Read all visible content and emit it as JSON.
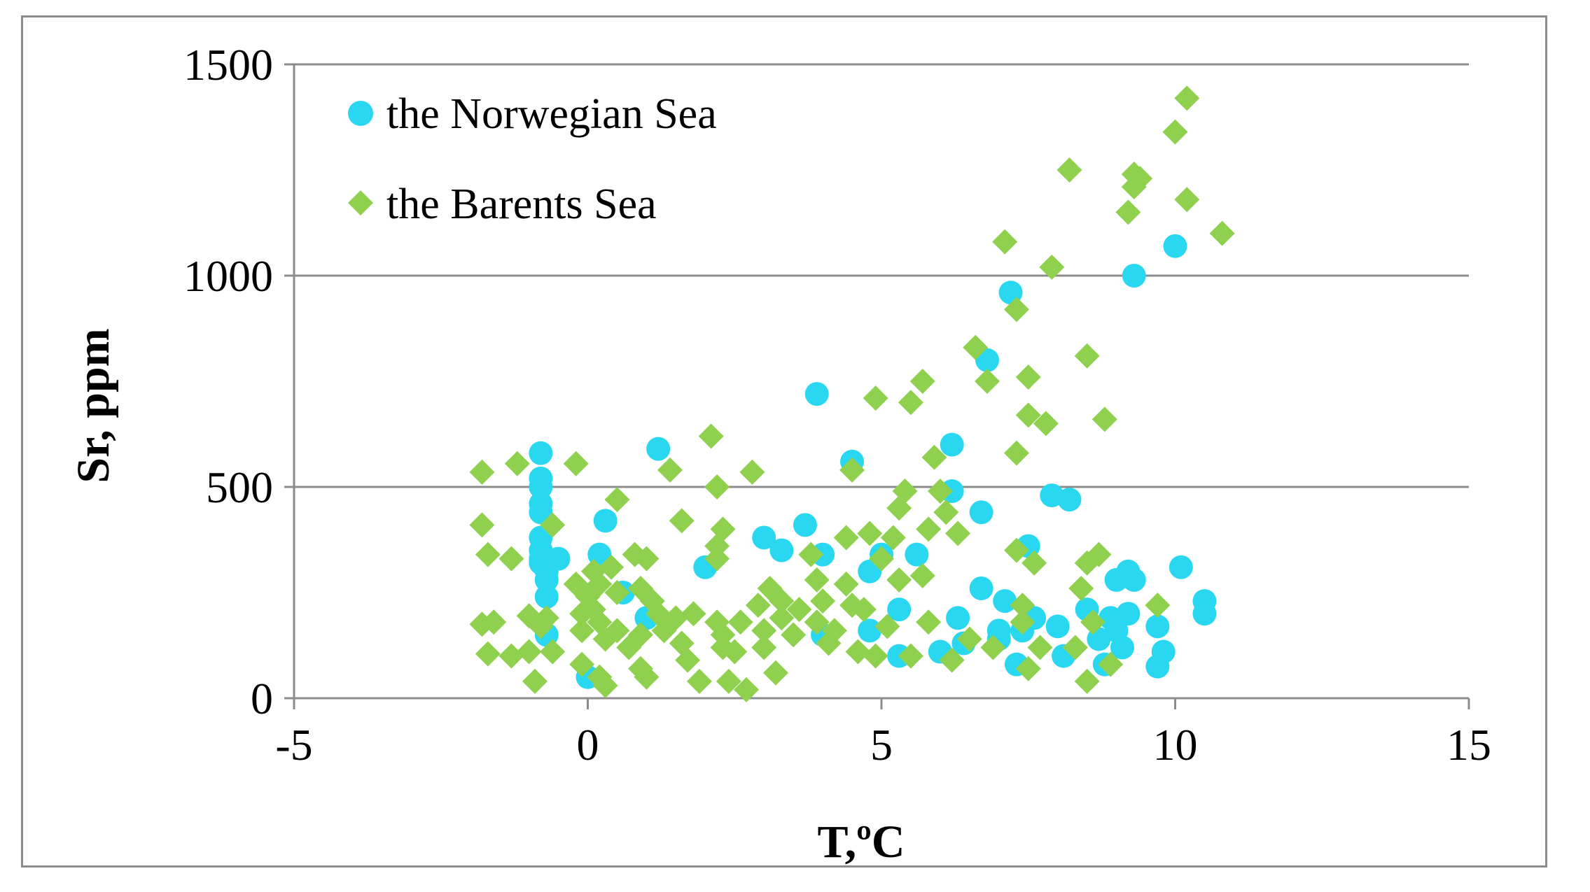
{
  "chart_data": {
    "type": "scatter",
    "title": "",
    "xlabel": "T,ºC",
    "ylabel": "Sr, ppm",
    "xlim": [
      -5,
      15
    ],
    "ylim": [
      0,
      1500
    ],
    "xticks": [
      -5,
      0,
      5,
      10,
      15
    ],
    "yticks": [
      0,
      500,
      1000,
      1500
    ],
    "grid": "horizontal",
    "legend_position": "top-left",
    "series": [
      {
        "name": "the Norwegian Sea",
        "marker": "circle",
        "color": "#29d8f0",
        "points": [
          [
            -0.8,
            580
          ],
          [
            -0.8,
            520
          ],
          [
            -0.8,
            500
          ],
          [
            -0.8,
            460
          ],
          [
            -0.8,
            440
          ],
          [
            -0.8,
            380
          ],
          [
            -0.8,
            350
          ],
          [
            -0.8,
            330
          ],
          [
            -0.8,
            320
          ],
          [
            -0.7,
            300
          ],
          [
            -0.7,
            280
          ],
          [
            -0.7,
            240
          ],
          [
            -0.5,
            330
          ],
          [
            -0.7,
            150
          ],
          [
            0,
            50
          ],
          [
            0.2,
            340
          ],
          [
            0.3,
            420
          ],
          [
            0.6,
            250
          ],
          [
            1.0,
            190
          ],
          [
            1.2,
            590
          ],
          [
            2.0,
            310
          ],
          [
            3.0,
            380
          ],
          [
            3.3,
            350
          ],
          [
            3.7,
            410
          ],
          [
            3.9,
            720
          ],
          [
            4.0,
            340
          ],
          [
            4.0,
            150
          ],
          [
            4.5,
            560
          ],
          [
            4.8,
            300
          ],
          [
            4.8,
            160
          ],
          [
            5.0,
            340
          ],
          [
            5.3,
            210
          ],
          [
            5.3,
            100
          ],
          [
            5.6,
            340
          ],
          [
            6.0,
            110
          ],
          [
            6.2,
            490
          ],
          [
            6.2,
            600
          ],
          [
            6.3,
            190
          ],
          [
            6.4,
            130
          ],
          [
            6.7,
            260
          ],
          [
            6.7,
            440
          ],
          [
            6.8,
            800
          ],
          [
            7.0,
            160
          ],
          [
            7.0,
            140
          ],
          [
            7.1,
            230
          ],
          [
            7.2,
            960
          ],
          [
            7.3,
            80
          ],
          [
            7.4,
            160
          ],
          [
            7.5,
            360
          ],
          [
            7.6,
            190
          ],
          [
            7.9,
            480
          ],
          [
            8.0,
            170
          ],
          [
            8.1,
            100
          ],
          [
            8.2,
            470
          ],
          [
            8.5,
            210
          ],
          [
            8.7,
            140
          ],
          [
            8.9,
            190
          ],
          [
            8.8,
            80
          ],
          [
            9.0,
            160
          ],
          [
            9.0,
            280
          ],
          [
            9.1,
            120
          ],
          [
            9.2,
            200
          ],
          [
            9.2,
            300
          ],
          [
            9.3,
            1000
          ],
          [
            9.3,
            280
          ],
          [
            9.7,
            170
          ],
          [
            9.7,
            75
          ],
          [
            9.8,
            110
          ],
          [
            10.0,
            1070
          ],
          [
            10.1,
            310
          ],
          [
            10.5,
            230
          ],
          [
            10.5,
            200
          ]
        ]
      },
      {
        "name": "the Barents Sea",
        "marker": "diamond",
        "color": "#8fd14f",
        "points": [
          [
            -1.8,
            535
          ],
          [
            -1.8,
            410
          ],
          [
            -1.7,
            340
          ],
          [
            -1.8,
            175
          ],
          [
            -1.6,
            180
          ],
          [
            -1.7,
            105
          ],
          [
            -1.3,
            330
          ],
          [
            -1.2,
            555
          ],
          [
            -1.3,
            100
          ],
          [
            -1.0,
            195
          ],
          [
            -1.0,
            110
          ],
          [
            -0.9,
            40
          ],
          [
            -0.6,
            410
          ],
          [
            -0.7,
            190
          ],
          [
            -0.6,
            110
          ],
          [
            -0.8,
            170
          ],
          [
            -0.2,
            555
          ],
          [
            -0.2,
            270
          ],
          [
            -0.1,
            200
          ],
          [
            -0.1,
            160
          ],
          [
            -0.1,
            80
          ],
          [
            0,
            240
          ],
          [
            0.1,
            300
          ],
          [
            0.1,
            210
          ],
          [
            0.2,
            270
          ],
          [
            0.2,
            180
          ],
          [
            0.3,
            140
          ],
          [
            0.2,
            50
          ],
          [
            0.3,
            30
          ],
          [
            0.4,
            310
          ],
          [
            0.5,
            470
          ],
          [
            0.5,
            250
          ],
          [
            0.5,
            160
          ],
          [
            0.7,
            120
          ],
          [
            0.8,
            340
          ],
          [
            0.9,
            260
          ],
          [
            0.9,
            150
          ],
          [
            0.9,
            70
          ],
          [
            1.0,
            50
          ],
          [
            1.0,
            330
          ],
          [
            1.1,
            230
          ],
          [
            1.2,
            200
          ],
          [
            1.3,
            160
          ],
          [
            1.4,
            540
          ],
          [
            1.5,
            190
          ],
          [
            1.6,
            420
          ],
          [
            1.6,
            130
          ],
          [
            1.7,
            90
          ],
          [
            1.8,
            200
          ],
          [
            1.9,
            40
          ],
          [
            2.1,
            620
          ],
          [
            2.2,
            500
          ],
          [
            2.2,
            360
          ],
          [
            2.2,
            330
          ],
          [
            2.3,
            400
          ],
          [
            2.2,
            180
          ],
          [
            2.3,
            150
          ],
          [
            2.3,
            120
          ],
          [
            2.4,
            40
          ],
          [
            2.5,
            110
          ],
          [
            2.6,
            180
          ],
          [
            2.7,
            20
          ],
          [
            2.8,
            535
          ],
          [
            2.9,
            220
          ],
          [
            3.0,
            160
          ],
          [
            3.0,
            120
          ],
          [
            3.1,
            260
          ],
          [
            3.2,
            60
          ],
          [
            3.3,
            230
          ],
          [
            3.3,
            190
          ],
          [
            3.5,
            150
          ],
          [
            3.6,
            210
          ],
          [
            3.8,
            340
          ],
          [
            3.9,
            280
          ],
          [
            3.9,
            180
          ],
          [
            4.0,
            230
          ],
          [
            4.1,
            130
          ],
          [
            4.2,
            160
          ],
          [
            4.4,
            270
          ],
          [
            4.4,
            380
          ],
          [
            4.5,
            220
          ],
          [
            4.5,
            540
          ],
          [
            4.6,
            110
          ],
          [
            4.7,
            210
          ],
          [
            4.8,
            390
          ],
          [
            4.9,
            710
          ],
          [
            4.9,
            100
          ],
          [
            5.0,
            330
          ],
          [
            5.1,
            170
          ],
          [
            5.2,
            380
          ],
          [
            5.3,
            280
          ],
          [
            5.3,
            450
          ],
          [
            5.4,
            490
          ],
          [
            5.5,
            700
          ],
          [
            5.5,
            100
          ],
          [
            5.7,
            290
          ],
          [
            5.7,
            750
          ],
          [
            5.8,
            180
          ],
          [
            5.8,
            400
          ],
          [
            5.9,
            570
          ],
          [
            6.0,
            490
          ],
          [
            6.1,
            440
          ],
          [
            6.2,
            90
          ],
          [
            6.3,
            390
          ],
          [
            6.5,
            140
          ],
          [
            6.6,
            830
          ],
          [
            6.8,
            750
          ],
          [
            6.9,
            120
          ],
          [
            7.1,
            1080
          ],
          [
            7.3,
            920
          ],
          [
            7.3,
            350
          ],
          [
            7.3,
            580
          ],
          [
            7.4,
            220
          ],
          [
            7.4,
            180
          ],
          [
            7.5,
            760
          ],
          [
            7.5,
            670
          ],
          [
            7.5,
            70
          ],
          [
            7.6,
            320
          ],
          [
            7.7,
            120
          ],
          [
            7.8,
            650
          ],
          [
            7.9,
            1020
          ],
          [
            8.2,
            1250
          ],
          [
            8.3,
            120
          ],
          [
            8.4,
            260
          ],
          [
            8.5,
            810
          ],
          [
            8.5,
            320
          ],
          [
            8.5,
            40
          ],
          [
            8.6,
            180
          ],
          [
            8.7,
            340
          ],
          [
            8.8,
            660
          ],
          [
            8.9,
            80
          ],
          [
            9.2,
            1150
          ],
          [
            9.3,
            1240
          ],
          [
            9.3,
            1210
          ],
          [
            9.4,
            1230
          ],
          [
            9.7,
            220
          ],
          [
            10.0,
            1340
          ],
          [
            10.2,
            1420
          ],
          [
            10.2,
            1180
          ],
          [
            10.8,
            1100
          ]
        ]
      }
    ]
  }
}
